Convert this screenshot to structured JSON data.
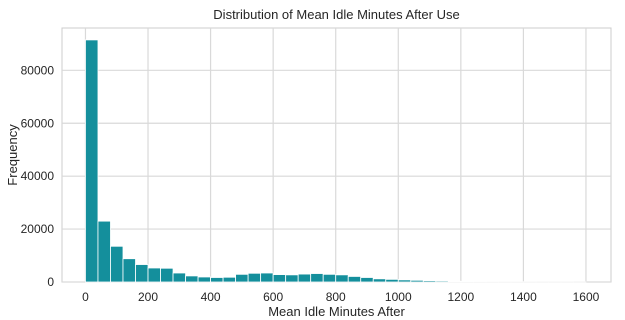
{
  "chart_data": {
    "type": "bar",
    "title": "Distribution of Mean Idle Minutes After Use",
    "xlabel": "Mean Idle Minutes After",
    "ylabel": "Frequency",
    "xlim": [
      -75,
      1680
    ],
    "ylim": [
      0,
      96000
    ],
    "xticks": [
      0,
      200,
      400,
      600,
      800,
      1000,
      1200,
      1400,
      1600
    ],
    "yticks": [
      0,
      20000,
      40000,
      60000,
      80000
    ],
    "grid": true,
    "bar_color": "#148f9c",
    "bin_edges": [
      0,
      40,
      80,
      120,
      160,
      200,
      240,
      280,
      320,
      360,
      400,
      440,
      480,
      520,
      560,
      600,
      640,
      680,
      720,
      760,
      800,
      840,
      880,
      920,
      960,
      1000,
      1040,
      1080,
      1120,
      1160,
      1200,
      1240,
      1280,
      1320,
      1360,
      1400,
      1440,
      1480,
      1520,
      1560,
      1600
    ],
    "values": [
      91500,
      23000,
      13500,
      8800,
      6600,
      5300,
      5200,
      3400,
      2300,
      1900,
      1700,
      1800,
      2900,
      3300,
      3400,
      2800,
      2700,
      3000,
      3200,
      2900,
      2700,
      2100,
      1700,
      1200,
      1000,
      800,
      650,
      500,
      400,
      300,
      220,
      180,
      140,
      110,
      90,
      70,
      50,
      40,
      30,
      20
    ]
  }
}
